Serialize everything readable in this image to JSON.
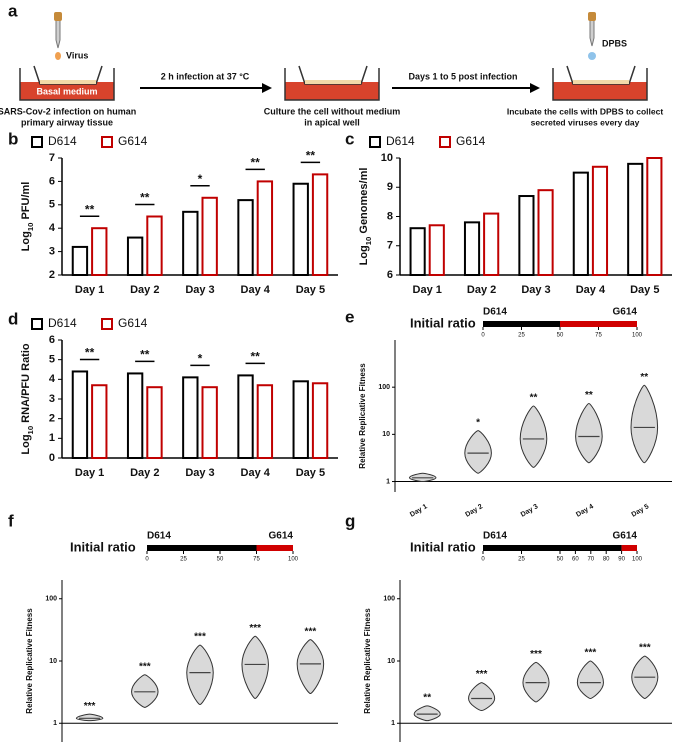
{
  "schematic": {
    "panel": "a",
    "virus": "Virus",
    "medium": "Basal medium",
    "step1": [
      "SARS-Cov-2 infection on human",
      "primary airway tissue"
    ],
    "arrow1": "2 h infection  at 37 °C",
    "step2": [
      "Culture the cell without medium",
      "in apical well"
    ],
    "arrow2": "Days 1 to 5 post infection",
    "dpbs": "DPBS",
    "step3": [
      "Incubate the cells with DPBS to collect",
      "secreted viruses every day"
    ]
  },
  "chart_data": [
    {
      "panel": "b",
      "type": "bar",
      "ylabel": [
        "Log",
        "10",
        " PFU/ml"
      ],
      "categories": [
        "Day 1",
        "Day 2",
        "Day 3",
        "Day 4",
        "Day 5"
      ],
      "series": [
        {
          "name": "D614",
          "color": "#000000",
          "values": [
            3.2,
            3.6,
            4.7,
            5.2,
            5.9
          ]
        },
        {
          "name": "G614",
          "color": "#c00000",
          "values": [
            4.0,
            4.5,
            5.3,
            6.0,
            6.3
          ]
        }
      ],
      "annotations": [
        "**",
        "**",
        "*",
        "**",
        "**"
      ],
      "ylim": [
        2,
        7
      ],
      "yticks": [
        2,
        3,
        4,
        5,
        6,
        7
      ]
    },
    {
      "panel": "c",
      "type": "bar",
      "ylabel": [
        "Log",
        "10",
        " Genomes/ml"
      ],
      "categories": [
        "Day 1",
        "Day 2",
        "Day 3",
        "Day 4",
        "Day 5"
      ],
      "series": [
        {
          "name": "D614",
          "color": "#000000",
          "values": [
            7.6,
            7.8,
            8.7,
            9.5,
            9.8
          ]
        },
        {
          "name": "G614",
          "color": "#c00000",
          "values": [
            7.7,
            8.1,
            8.9,
            9.7,
            10.0
          ]
        }
      ],
      "annotations": [
        null,
        null,
        null,
        null,
        null
      ],
      "ylim": [
        6,
        10
      ],
      "yticks": [
        6,
        7,
        8,
        9,
        10
      ]
    },
    {
      "panel": "d",
      "type": "bar",
      "ylabel": [
        "Log",
        "10",
        " RNA/PFU Ratio"
      ],
      "categories": [
        "Day 1",
        "Day 2",
        "Day 3",
        "Day 4",
        "Day 5"
      ],
      "series": [
        {
          "name": "D614",
          "color": "#000000",
          "values": [
            4.4,
            4.3,
            4.1,
            4.2,
            3.9
          ]
        },
        {
          "name": "G614",
          "color": "#c00000",
          "values": [
            3.7,
            3.6,
            3.6,
            3.7,
            3.8
          ]
        }
      ],
      "annotations": [
        "**",
        "**",
        "*",
        "**",
        null
      ],
      "ylim": [
        0,
        6
      ],
      "yticks": [
        0,
        1,
        2,
        3,
        4,
        5,
        6
      ]
    },
    {
      "panel": "e",
      "type": "violin",
      "ylabel": "Relative Replicative Fitness",
      "yscale": "log",
      "categories": [
        "Day 1",
        "Day 2",
        "Day 3",
        "Day 4",
        "Day 5"
      ],
      "values": [
        1.2,
        4,
        8,
        9,
        14
      ],
      "low": [
        1,
        1.5,
        2,
        2.5,
        2.5
      ],
      "high": [
        1.5,
        12,
        40,
        45,
        110
      ],
      "annotations": [
        null,
        "*",
        "**",
        "**",
        "**"
      ],
      "reference_line": 1,
      "ylim": [
        0.6,
        1000
      ],
      "yticks": [
        1,
        10,
        100
      ],
      "ratio": {
        "label": "Initial ratio",
        "left": "D614",
        "right": "G614",
        "split": 50,
        "ticks": [
          0,
          25,
          50,
          75,
          100
        ]
      }
    },
    {
      "panel": "f",
      "type": "violin",
      "ylabel": "Relative Replicative Fitness",
      "yscale": "log",
      "categories": [
        "Day 1",
        "Day 2",
        "Day 3",
        "Day 4",
        "Day 5"
      ],
      "values": [
        1.2,
        3.2,
        6.5,
        8.8,
        9
      ],
      "low": [
        1.1,
        1.8,
        2,
        2.5,
        3
      ],
      "high": [
        1.4,
        6,
        18,
        25,
        22
      ],
      "annotations": [
        "***",
        "***",
        "***",
        "***",
        "***"
      ],
      "reference_line": 1,
      "ylim": [
        0.5,
        200
      ],
      "yticks": [
        1,
        10,
        100
      ],
      "ratio": {
        "label": "Initial ratio",
        "left": "D614",
        "right": "G614",
        "split": 75,
        "ticks": [
          0,
          25,
          50,
          75,
          100
        ]
      }
    },
    {
      "panel": "g",
      "type": "violin",
      "ylabel": "Relative Replicative Fitness",
      "yscale": "log",
      "categories": [
        "Day 1",
        "Day 2",
        "Day 3",
        "Day 4",
        "Day 5"
      ],
      "values": [
        1.4,
        2.5,
        4.5,
        4.5,
        5.5
      ],
      "low": [
        1.1,
        1.6,
        2.2,
        2.5,
        2.5
      ],
      "high": [
        1.9,
        4.5,
        9.5,
        10,
        12
      ],
      "annotations": [
        "**",
        "***",
        "***",
        "***",
        "***"
      ],
      "reference_line": 1,
      "ylim": [
        0.5,
        200
      ],
      "yticks": [
        1,
        10,
        100
      ],
      "ratio": {
        "label": "Initial ratio",
        "left": "D614",
        "right": "G614",
        "split": 90,
        "ticks": [
          0,
          25,
          50,
          60,
          70,
          80,
          90,
          100
        ]
      }
    }
  ]
}
